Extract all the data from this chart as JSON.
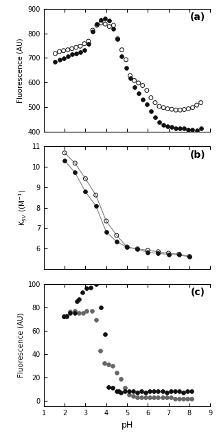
{
  "panel_a": {
    "title": "(a)",
    "ylabel": "Fluorescence (AU)",
    "ylim": [
      400,
      900
    ],
    "yticks": [
      400,
      500,
      600,
      700,
      800,
      900
    ],
    "xlim": [
      1,
      9
    ],
    "xticks": [
      2,
      3,
      4,
      5,
      6,
      7,
      8,
      9
    ],
    "filled": {
      "x": [
        1.55,
        1.75,
        1.95,
        2.15,
        2.35,
        2.55,
        2.75,
        2.95,
        3.15,
        3.35,
        3.55,
        3.75,
        3.95,
        4.15,
        4.35,
        4.55,
        4.75,
        4.95,
        5.15,
        5.35,
        5.55,
        5.75,
        5.95,
        6.15,
        6.35,
        6.55,
        6.75,
        6.95,
        7.15,
        7.35,
        7.55,
        7.75,
        7.95,
        8.15,
        8.35,
        8.55
      ],
      "y": [
        685,
        693,
        698,
        708,
        714,
        719,
        724,
        733,
        758,
        808,
        838,
        856,
        860,
        852,
        818,
        778,
        708,
        658,
        618,
        582,
        557,
        532,
        512,
        482,
        458,
        438,
        428,
        423,
        418,
        414,
        413,
        412,
        409,
        407,
        404,
        413
      ]
    },
    "open": {
      "x": [
        1.55,
        1.75,
        1.95,
        2.15,
        2.35,
        2.55,
        2.75,
        2.95,
        3.15,
        3.35,
        3.55,
        3.75,
        3.95,
        4.15,
        4.35,
        4.55,
        4.75,
        4.95,
        5.15,
        5.35,
        5.55,
        5.75,
        5.95,
        6.15,
        6.35,
        6.55,
        6.75,
        6.95,
        7.15,
        7.35,
        7.55,
        7.75,
        7.95,
        8.15,
        8.35,
        8.55
      ],
      "y": [
        718,
        726,
        730,
        733,
        738,
        743,
        748,
        758,
        768,
        813,
        833,
        843,
        838,
        828,
        833,
        778,
        733,
        693,
        628,
        608,
        598,
        588,
        568,
        538,
        518,
        503,
        498,
        493,
        491,
        488,
        488,
        490,
        493,
        498,
        508,
        518
      ]
    }
  },
  "panel_b": {
    "title": "(b)",
    "ylabel": "K$_{SV}$ ((M$^{-1}$)",
    "ylim": [
      5,
      11
    ],
    "yticks": [
      6,
      7,
      8,
      9,
      10,
      11
    ],
    "xlim": [
      1,
      9
    ],
    "xticks": [
      2,
      3,
      4,
      5,
      6,
      7,
      8,
      9
    ],
    "filled": {
      "x": [
        2.0,
        2.5,
        3.0,
        3.5,
        4.0,
        4.5,
        5.0,
        5.5,
        6.0,
        6.5,
        7.0,
        7.5,
        8.0
      ],
      "y": [
        10.3,
        9.72,
        8.78,
        8.1,
        6.82,
        6.35,
        6.07,
        5.98,
        5.82,
        5.77,
        5.72,
        5.7,
        5.6
      ]
    },
    "open": {
      "x": [
        2.0,
        2.5,
        3.0,
        3.5,
        4.0,
        4.5,
        5.0,
        5.5,
        6.0,
        6.5,
        7.0,
        7.5,
        8.0
      ],
      "y": [
        10.68,
        10.18,
        9.42,
        8.62,
        7.35,
        6.65,
        6.08,
        5.99,
        5.92,
        5.85,
        5.78,
        5.73,
        5.62
      ]
    }
  },
  "panel_c": {
    "title": "(c)",
    "ylabel": "Fluorescence (AU)",
    "xlabel": "pH",
    "ylim": [
      -5,
      100
    ],
    "yticks": [
      0,
      20,
      40,
      60,
      80,
      100
    ],
    "xlim": [
      1,
      9
    ],
    "xticks": [
      1,
      2,
      3,
      4,
      5,
      6,
      7,
      8,
      9
    ],
    "filled": {
      "x": [
        1.95,
        2.1,
        2.25,
        2.5,
        2.6,
        2.7,
        2.85,
        3.05,
        3.25,
        3.5,
        3.75,
        3.95,
        4.1,
        4.3,
        4.5,
        4.6,
        4.7,
        4.9,
        5.1,
        5.3,
        5.5,
        5.7,
        5.9,
        6.1,
        6.3,
        6.5,
        6.7,
        6.9,
        7.1,
        7.3,
        7.5,
        7.7,
        7.9,
        8.1
      ],
      "y": [
        72,
        72,
        75,
        75,
        85,
        87,
        93,
        96,
        97,
        100,
        80,
        57,
        12,
        11,
        8,
        8,
        7,
        8,
        8,
        8,
        7,
        8,
        7,
        8,
        8,
        8,
        8,
        7,
        8,
        8,
        8,
        7,
        8,
        8
      ]
    },
    "open": {
      "x": [
        1.95,
        2.1,
        2.25,
        2.5,
        2.7,
        2.9,
        3.05,
        3.3,
        3.5,
        3.7,
        3.9,
        4.1,
        4.3,
        4.5,
        4.7,
        4.9,
        5.1,
        5.3,
        5.5,
        5.7,
        5.9,
        6.1,
        6.3,
        6.5,
        6.7,
        6.9,
        7.1,
        7.3,
        7.5,
        7.7,
        7.9,
        8.1
      ],
      "y": [
        72,
        73,
        76,
        77,
        75,
        75,
        77,
        77,
        69,
        43,
        32,
        31,
        30,
        24,
        19,
        11,
        5,
        4,
        3,
        3,
        3,
        3,
        3,
        3,
        3,
        3,
        3,
        2,
        2,
        2,
        2,
        2
      ]
    }
  },
  "marker_size": 18,
  "line_color": "#888888",
  "filled_color": "#111111",
  "open_edgecolor_a": "#222222",
  "open_facecolor_a": "none",
  "open_edgecolor_c": "#666666",
  "open_facecolor_c": "#666666"
}
